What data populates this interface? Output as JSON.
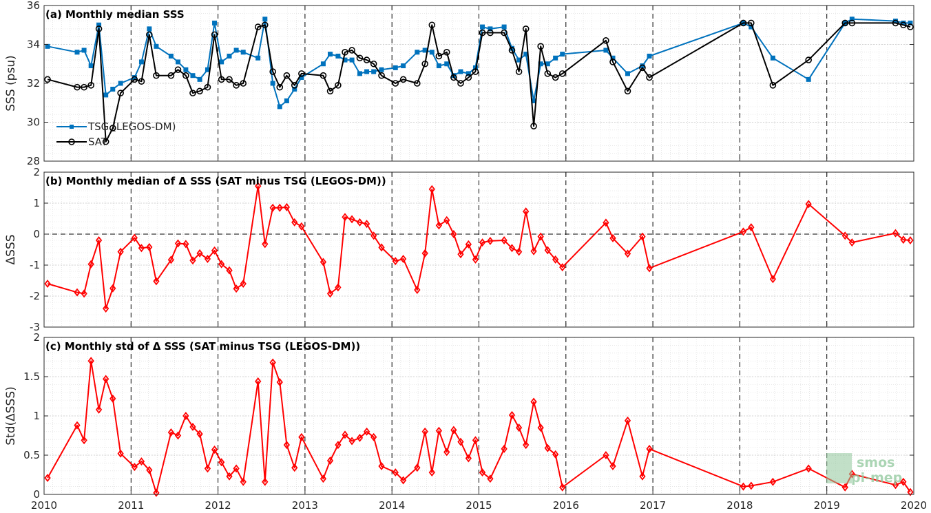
{
  "chart_data": [
    {
      "type": "line",
      "title": "(a) Monthly median SSS",
      "ylabel": "SSS (psu)",
      "ylim": [
        28,
        36
      ],
      "yticks": [
        28,
        30,
        32,
        34,
        36
      ],
      "xlim": [
        2010,
        2020
      ],
      "xticks": [
        "2010",
        "2011",
        "2012",
        "2013",
        "2014",
        "2015",
        "2016",
        "2017",
        "2018",
        "2019",
        "2020"
      ],
      "grid": true,
      "legend_position": "bottom-left",
      "series": [
        {
          "name": "TSG (LEGOS-DM)",
          "color": "#0072BD",
          "marker": "square",
          "x": [
            2010.04,
            2010.38,
            2010.46,
            2010.54,
            2010.63,
            2010.71,
            2010.79,
            2010.88,
            2011.04,
            2011.12,
            2011.21,
            2011.29,
            2011.46,
            2011.54,
            2011.63,
            2011.71,
            2011.79,
            2011.88,
            2011.96,
            2012.04,
            2012.13,
            2012.21,
            2012.29,
            2012.46,
            2012.54,
            2012.63,
            2012.71,
            2012.79,
            2012.88,
            2012.96,
            2013.21,
            2013.29,
            2013.38,
            2013.46,
            2013.54,
            2013.63,
            2013.71,
            2013.79,
            2013.88,
            2014.04,
            2014.13,
            2014.29,
            2014.38,
            2014.46,
            2014.54,
            2014.63,
            2014.71,
            2014.79,
            2014.88,
            2014.96,
            2015.04,
            2015.13,
            2015.29,
            2015.38,
            2015.46,
            2015.54,
            2015.63,
            2015.71,
            2015.79,
            2015.88,
            2015.96,
            2016.46,
            2016.54,
            2016.71,
            2016.88,
            2016.96,
            2018.04,
            2018.13,
            2018.38,
            2018.79,
            2019.21,
            2019.29,
            2019.79,
            2019.88,
            2019.96
          ],
          "y": [
            33.9,
            33.6,
            33.7,
            32.9,
            35.0,
            31.4,
            31.7,
            32.0,
            32.3,
            33.1,
            34.8,
            33.9,
            33.4,
            33.1,
            32.7,
            32.4,
            32.2,
            32.7,
            35.1,
            33.1,
            33.4,
            33.7,
            33.6,
            33.3,
            35.3,
            32.0,
            30.8,
            31.1,
            31.7,
            32.3,
            33.0,
            33.5,
            33.4,
            33.2,
            33.2,
            32.5,
            32.6,
            32.6,
            32.7,
            32.8,
            32.9,
            33.6,
            33.7,
            33.6,
            32.9,
            33.0,
            32.4,
            32.6,
            32.5,
            32.8,
            34.9,
            34.8,
            34.9,
            33.8,
            33.2,
            33.5,
            31.1,
            33.0,
            33.0,
            33.3,
            33.5,
            33.7,
            33.3,
            32.5,
            32.9,
            33.4,
            35.1,
            34.9,
            33.3,
            32.2,
            35.1,
            35.3,
            35.2,
            35.1,
            35.1
          ]
        },
        {
          "name": "SAT",
          "color": "#000000",
          "marker": "circle",
          "x": [
            2010.04,
            2010.38,
            2010.46,
            2010.54,
            2010.63,
            2010.71,
            2010.79,
            2010.88,
            2011.04,
            2011.12,
            2011.21,
            2011.29,
            2011.46,
            2011.54,
            2011.63,
            2011.71,
            2011.79,
            2011.88,
            2011.96,
            2012.04,
            2012.13,
            2012.21,
            2012.29,
            2012.46,
            2012.54,
            2012.63,
            2012.71,
            2012.79,
            2012.88,
            2012.96,
            2013.21,
            2013.29,
            2013.38,
            2013.46,
            2013.54,
            2013.63,
            2013.71,
            2013.79,
            2013.88,
            2014.04,
            2014.13,
            2014.29,
            2014.38,
            2014.46,
            2014.54,
            2014.63,
            2014.71,
            2014.79,
            2014.88,
            2014.96,
            2015.04,
            2015.13,
            2015.29,
            2015.38,
            2015.46,
            2015.54,
            2015.63,
            2015.71,
            2015.79,
            2015.88,
            2015.96,
            2016.46,
            2016.54,
            2016.71,
            2016.88,
            2016.96,
            2018.04,
            2018.13,
            2018.38,
            2018.79,
            2019.21,
            2019.29,
            2019.79,
            2019.88,
            2019.96
          ],
          "y": [
            32.2,
            31.8,
            31.8,
            31.9,
            34.8,
            29.0,
            29.7,
            31.5,
            32.2,
            32.1,
            34.5,
            32.4,
            32.4,
            32.7,
            32.4,
            31.5,
            31.6,
            31.8,
            34.5,
            32.2,
            32.2,
            31.9,
            32.0,
            34.9,
            35.0,
            32.6,
            31.8,
            32.4,
            31.9,
            32.5,
            32.4,
            31.6,
            31.9,
            33.6,
            33.7,
            33.3,
            33.2,
            33.0,
            32.4,
            32.0,
            32.2,
            32.0,
            33.0,
            35.0,
            33.4,
            33.6,
            32.3,
            32.0,
            32.3,
            32.6,
            34.6,
            34.6,
            34.6,
            33.7,
            32.6,
            34.8,
            29.8,
            33.9,
            32.5,
            32.3,
            32.5,
            34.2,
            33.1,
            31.6,
            32.8,
            32.3,
            35.1,
            35.1,
            31.9,
            33.2,
            35.1,
            35.1,
            35.1,
            35.0,
            34.9
          ]
        }
      ]
    },
    {
      "type": "line",
      "title": "(b) Monthly median of Δ SSS (SAT minus TSG (LEGOS-DM))",
      "ylabel": "ΔSSS",
      "ylim": [
        -3,
        2
      ],
      "yticks": [
        -3,
        -2,
        -1,
        0,
        1,
        2
      ],
      "xlim": [
        2010,
        2020
      ],
      "xticks": [
        "2010",
        "2011",
        "2012",
        "2013",
        "2014",
        "2015",
        "2016",
        "2017",
        "2018",
        "2019",
        "2020"
      ],
      "grid": true,
      "zero_line": true,
      "series": [
        {
          "color": "#FF0000",
          "marker": "diamond",
          "x": [
            2010.04,
            2010.38,
            2010.46,
            2010.54,
            2010.63,
            2010.71,
            2010.79,
            2010.88,
            2011.04,
            2011.12,
            2011.21,
            2011.29,
            2011.46,
            2011.54,
            2011.63,
            2011.71,
            2011.79,
            2011.88,
            2011.96,
            2012.04,
            2012.13,
            2012.21,
            2012.29,
            2012.46,
            2012.54,
            2012.63,
            2012.71,
            2012.79,
            2012.88,
            2012.96,
            2013.21,
            2013.29,
            2013.38,
            2013.46,
            2013.54,
            2013.63,
            2013.71,
            2013.79,
            2013.88,
            2014.04,
            2014.13,
            2014.29,
            2014.38,
            2014.46,
            2014.54,
            2014.63,
            2014.71,
            2014.79,
            2014.88,
            2014.96,
            2015.04,
            2015.13,
            2015.29,
            2015.38,
            2015.46,
            2015.54,
            2015.63,
            2015.71,
            2015.79,
            2015.88,
            2015.96,
            2016.46,
            2016.54,
            2016.71,
            2016.88,
            2016.96,
            2018.04,
            2018.13,
            2018.38,
            2018.79,
            2019.21,
            2019.29,
            2019.79,
            2019.88,
            2019.96
          ],
          "y": [
            -1.6,
            -1.88,
            -1.92,
            -0.97,
            -0.2,
            -2.4,
            -1.75,
            -0.57,
            -0.12,
            -0.45,
            -0.42,
            -1.52,
            -0.83,
            -0.3,
            -0.32,
            -0.85,
            -0.62,
            -0.8,
            -0.53,
            -0.97,
            -1.17,
            -1.76,
            -1.6,
            1.55,
            -0.32,
            0.85,
            0.85,
            0.87,
            0.38,
            0.25,
            -0.9,
            -1.92,
            -1.72,
            0.55,
            0.48,
            0.38,
            0.33,
            -0.05,
            -0.43,
            -0.87,
            -0.8,
            -1.8,
            -0.62,
            1.45,
            0.28,
            0.45,
            0.0,
            -0.65,
            -0.33,
            -0.82,
            -0.27,
            -0.22,
            -0.2,
            -0.45,
            -0.57,
            0.73,
            -0.55,
            -0.08,
            -0.52,
            -0.82,
            -1.07,
            0.37,
            -0.13,
            -0.63,
            -0.08,
            -1.1,
            0.08,
            0.22,
            -1.45,
            0.97,
            -0.05,
            -0.27,
            0.03,
            -0.18,
            -0.2
          ]
        }
      ]
    },
    {
      "type": "line",
      "title": "(c) Monthly std of Δ SSS (SAT minus TSG (LEGOS-DM))",
      "ylabel": "Std(ΔSSS)",
      "ylim": [
        0,
        2
      ],
      "yticks": [
        0,
        0.5,
        1,
        1.5,
        2
      ],
      "xlim": [
        2010,
        2020
      ],
      "xticks": [
        "2010",
        "2011",
        "2012",
        "2013",
        "2014",
        "2015",
        "2016",
        "2017",
        "2018",
        "2019",
        "2020"
      ],
      "grid": true,
      "series": [
        {
          "color": "#FF0000",
          "marker": "diamond",
          "x": [
            2010.04,
            2010.38,
            2010.46,
            2010.54,
            2010.63,
            2010.71,
            2010.79,
            2010.88,
            2011.04,
            2011.12,
            2011.21,
            2011.29,
            2011.46,
            2011.54,
            2011.63,
            2011.71,
            2011.79,
            2011.88,
            2011.96,
            2012.04,
            2012.13,
            2012.21,
            2012.29,
            2012.46,
            2012.54,
            2012.63,
            2012.71,
            2012.79,
            2012.88,
            2012.96,
            2013.21,
            2013.29,
            2013.38,
            2013.46,
            2013.54,
            2013.63,
            2013.71,
            2013.79,
            2013.88,
            2014.04,
            2014.13,
            2014.29,
            2014.38,
            2014.46,
            2014.54,
            2014.63,
            2014.71,
            2014.79,
            2014.88,
            2014.96,
            2015.04,
            2015.13,
            2015.29,
            2015.38,
            2015.46,
            2015.54,
            2015.63,
            2015.71,
            2015.79,
            2015.88,
            2015.96,
            2016.46,
            2016.54,
            2016.71,
            2016.88,
            2016.96,
            2018.04,
            2018.13,
            2018.38,
            2018.79,
            2019.21,
            2019.29,
            2019.79,
            2019.88,
            2019.96
          ],
          "y": [
            0.21,
            0.88,
            0.69,
            1.7,
            1.08,
            1.47,
            1.22,
            0.52,
            0.35,
            0.42,
            0.31,
            0.02,
            0.79,
            0.75,
            1.0,
            0.86,
            0.77,
            0.33,
            0.57,
            0.41,
            0.23,
            0.33,
            0.16,
            1.44,
            0.16,
            1.68,
            1.43,
            0.63,
            0.34,
            0.73,
            0.2,
            0.43,
            0.63,
            0.76,
            0.68,
            0.72,
            0.8,
            0.73,
            0.36,
            0.28,
            0.18,
            0.34,
            0.8,
            0.28,
            0.81,
            0.54,
            0.82,
            0.67,
            0.46,
            0.69,
            0.28,
            0.2,
            0.58,
            1.01,
            0.85,
            0.63,
            1.18,
            0.85,
            0.59,
            0.51,
            0.09,
            0.5,
            0.36,
            0.94,
            0.23,
            0.58,
            0.1,
            0.11,
            0.16,
            0.33,
            0.09,
            0.26,
            0.12,
            0.16,
            0.03
          ]
        }
      ]
    }
  ],
  "watermark": {
    "line1": "smos",
    "line2": "pi-mep"
  }
}
